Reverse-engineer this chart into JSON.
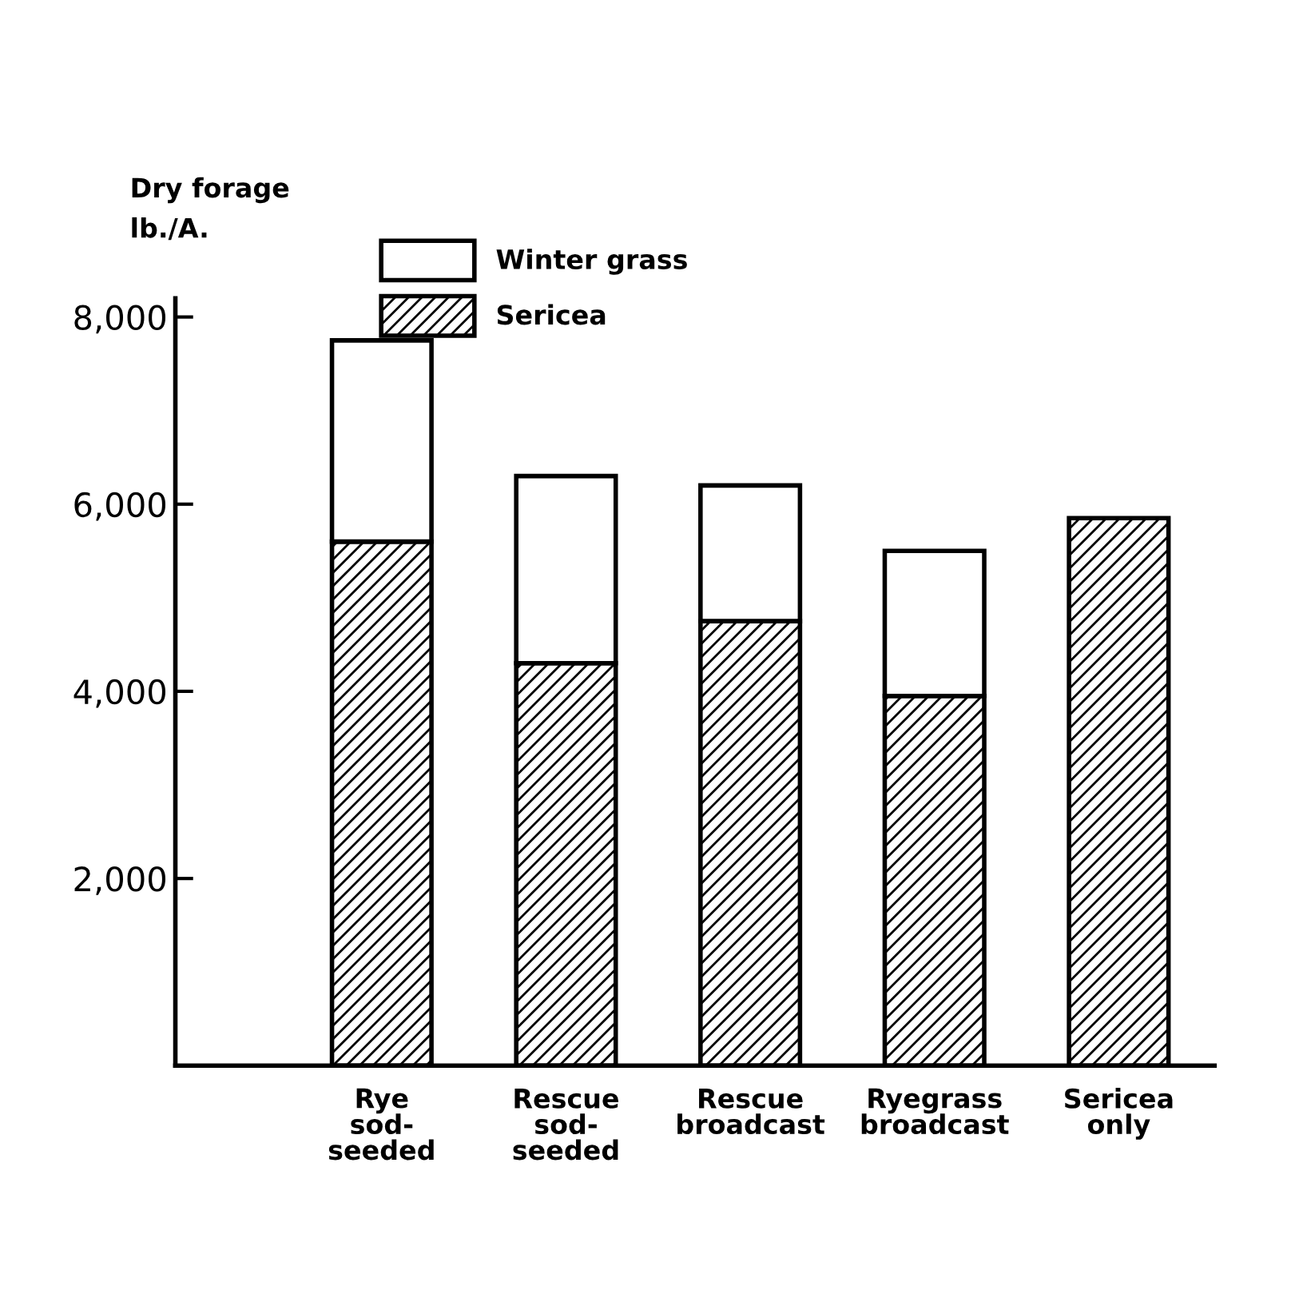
{
  "chart_data": {
    "type": "bar",
    "stacked": true,
    "ylabel": "Dry forage\nlb./A.",
    "categories": [
      "Rye\nsod-\nseeded",
      "Rescue\nsod-\nseeded",
      "Rescue\nbroadcast",
      "Ryegrass\nbroadcast",
      "Sericea\nonly"
    ],
    "series": [
      {
        "name": "Sericea",
        "color": "#000000",
        "values": [
          5600,
          4300,
          4750,
          3950,
          5850
        ]
      },
      {
        "name": "Winter grass",
        "color": "#ffffff",
        "values": [
          2150,
          2000,
          1450,
          1550,
          null
        ]
      }
    ],
    "ylim": [
      0,
      8200
    ],
    "yticks": [
      {
        "value": 2000,
        "label": "2,000"
      },
      {
        "value": 4000,
        "label": "4,000"
      },
      {
        "value": 6000,
        "label": "6,000"
      },
      {
        "value": 8000,
        "label": "8,000"
      }
    ],
    "grid": false,
    "legend": "top"
  }
}
